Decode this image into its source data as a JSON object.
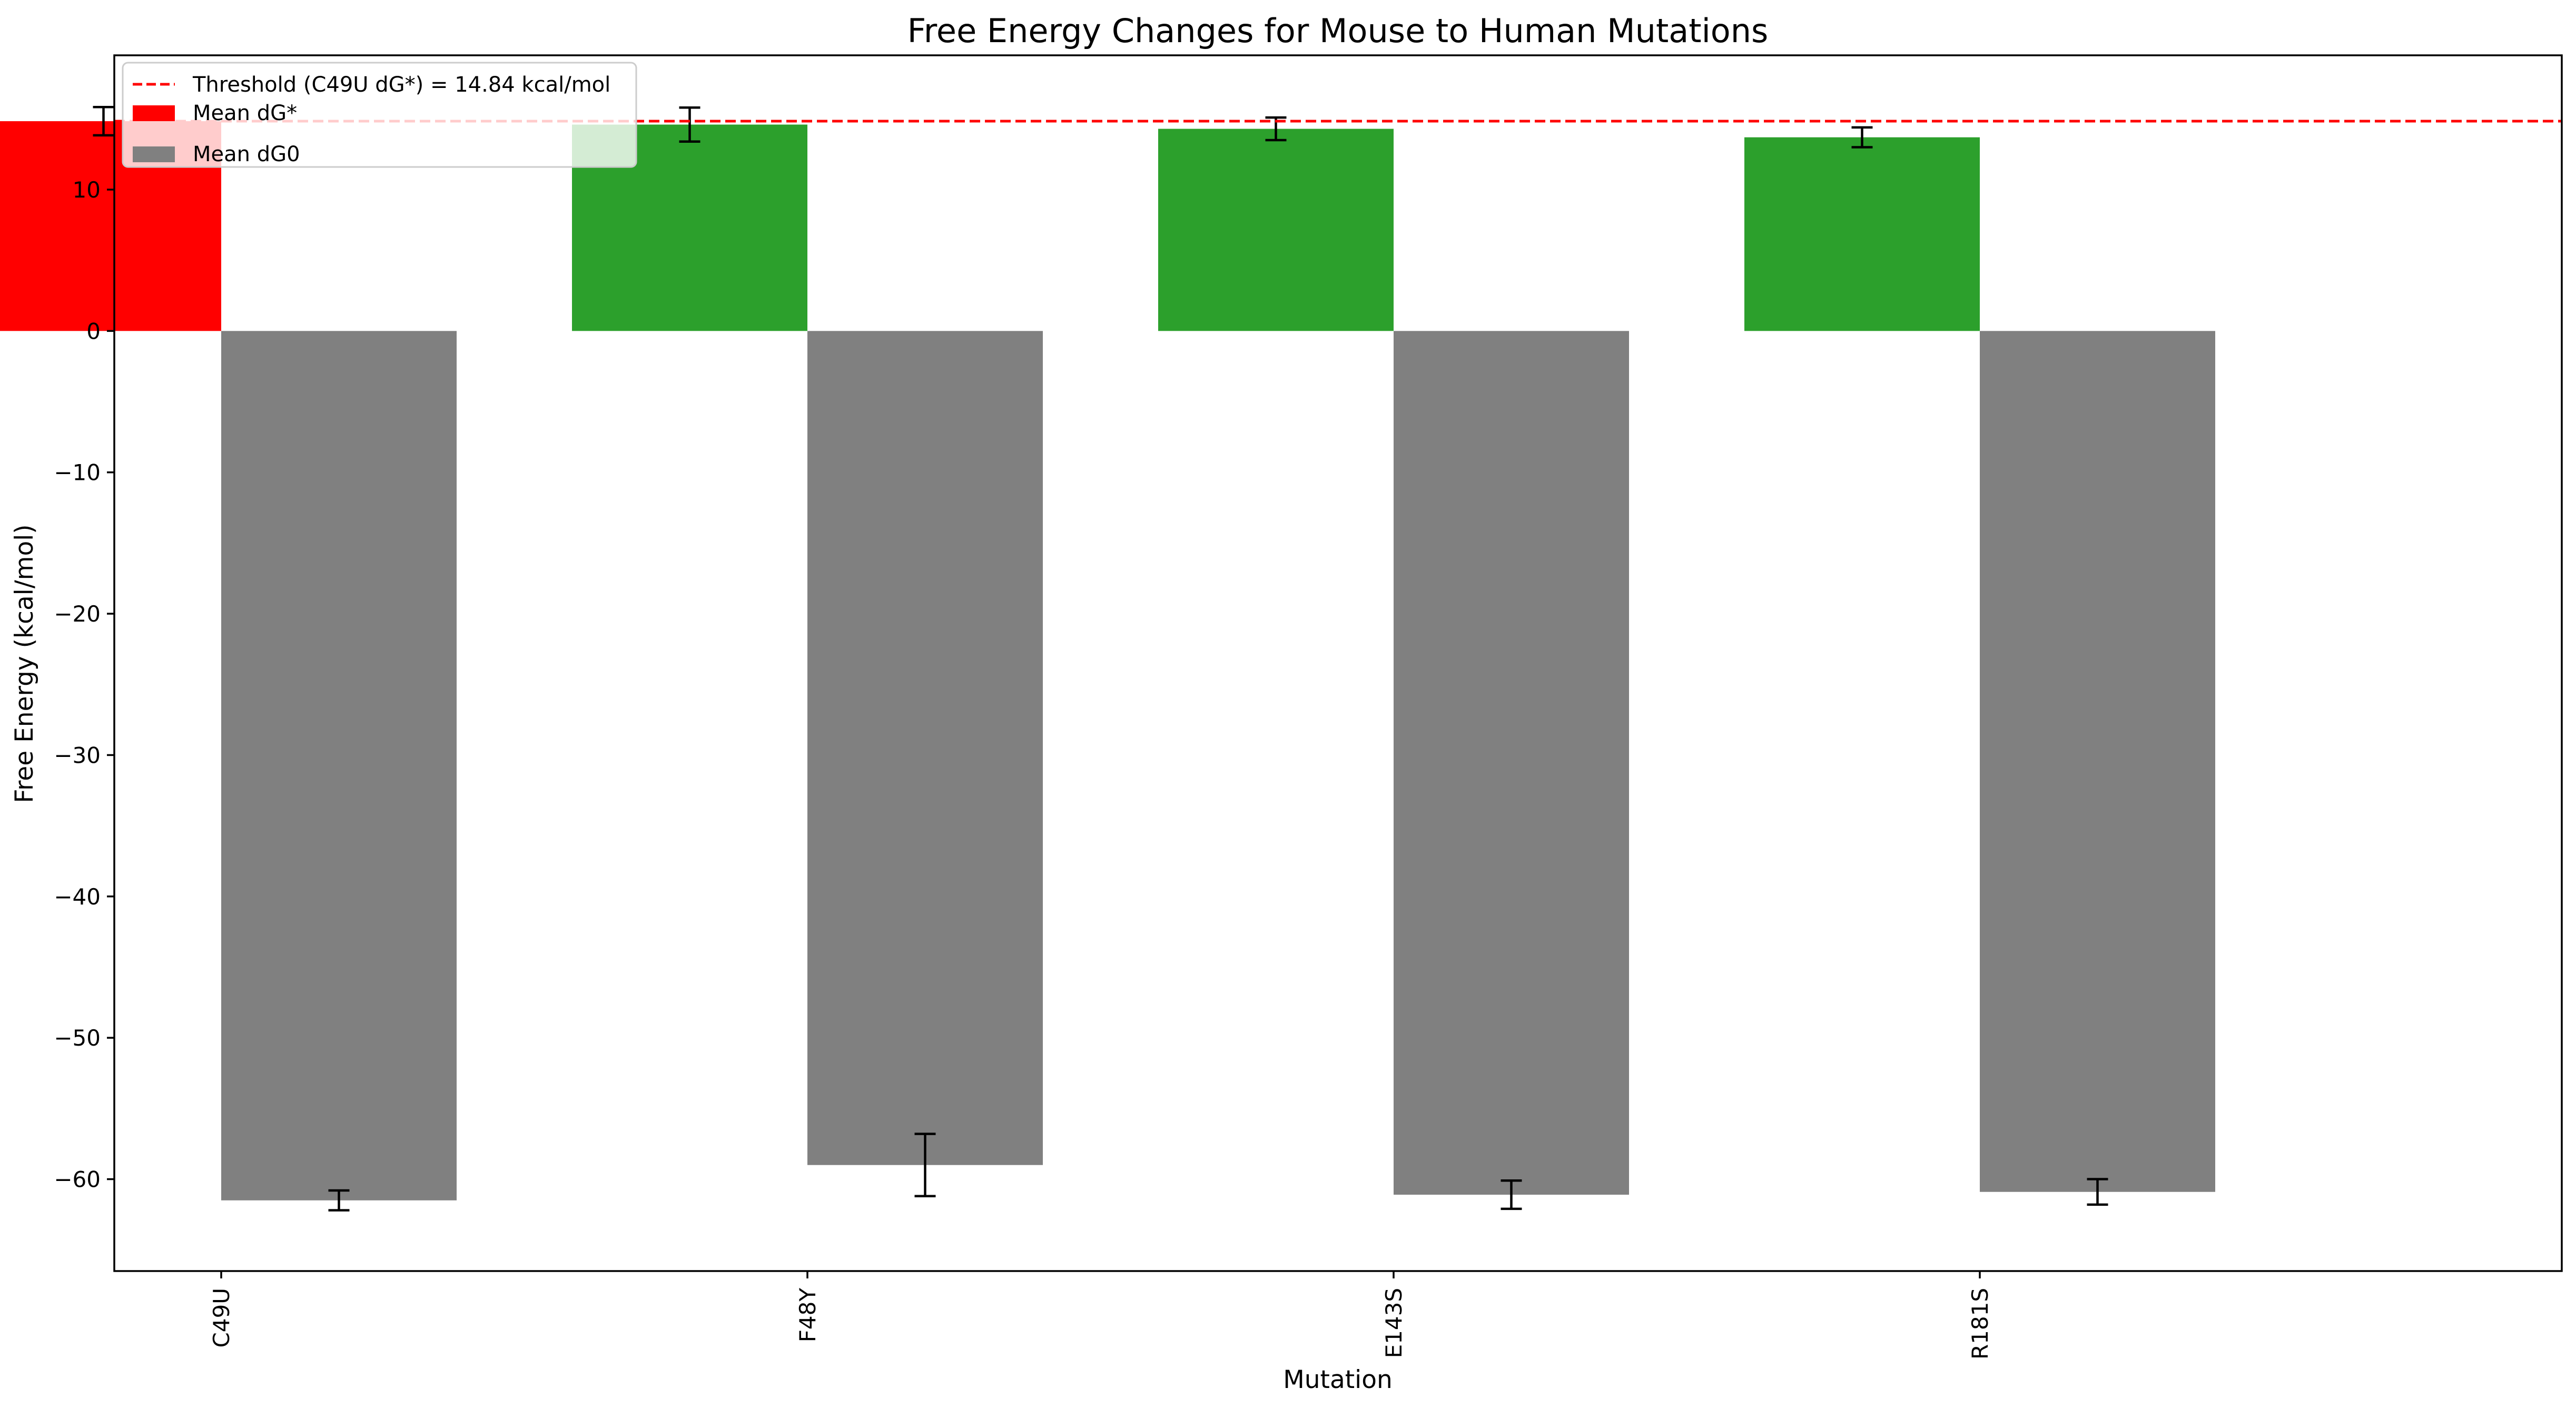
{
  "chart_data": {
    "type": "bar",
    "title": "Free Energy Changes for Mouse to Human Mutations",
    "xlabel": "Mutation",
    "ylabel": "Free Energy (kcal/mol)",
    "ylim": [
      -66.5,
      19.5
    ],
    "yticks": [
      10,
      0,
      -10,
      -20,
      -30,
      -40,
      -50,
      -60
    ],
    "ytick_labels": [
      "10",
      "0",
      "−10",
      "−20",
      "−30",
      "−40",
      "−50",
      "−60"
    ],
    "categories": [
      "C49U",
      "F48Y",
      "E143S",
      "R181S"
    ],
    "grid": false,
    "legend_position": "top-left",
    "series": [
      {
        "name": "Mean dG*",
        "values": [
          14.84,
          14.6,
          14.3,
          13.7
        ],
        "errors": [
          1.0,
          1.2,
          0.8,
          0.7
        ],
        "colors": [
          "#ff0000",
          "#2ca02c",
          "#2ca02c",
          "#2ca02c"
        ],
        "legend_color": "#ff0000"
      },
      {
        "name": "Mean dG0",
        "values": [
          -61.5,
          -59.0,
          -61.1,
          -60.9
        ],
        "errors": [
          0.7,
          2.2,
          1.0,
          0.9
        ],
        "colors": [
          "#808080",
          "#808080",
          "#808080",
          "#808080"
        ],
        "legend_color": "#808080"
      }
    ],
    "threshold": {
      "value": 14.84,
      "label": "Threshold (C49U dG*) = 14.84 kcal/mol",
      "color": "#ff0000",
      "style": "dashed"
    }
  }
}
